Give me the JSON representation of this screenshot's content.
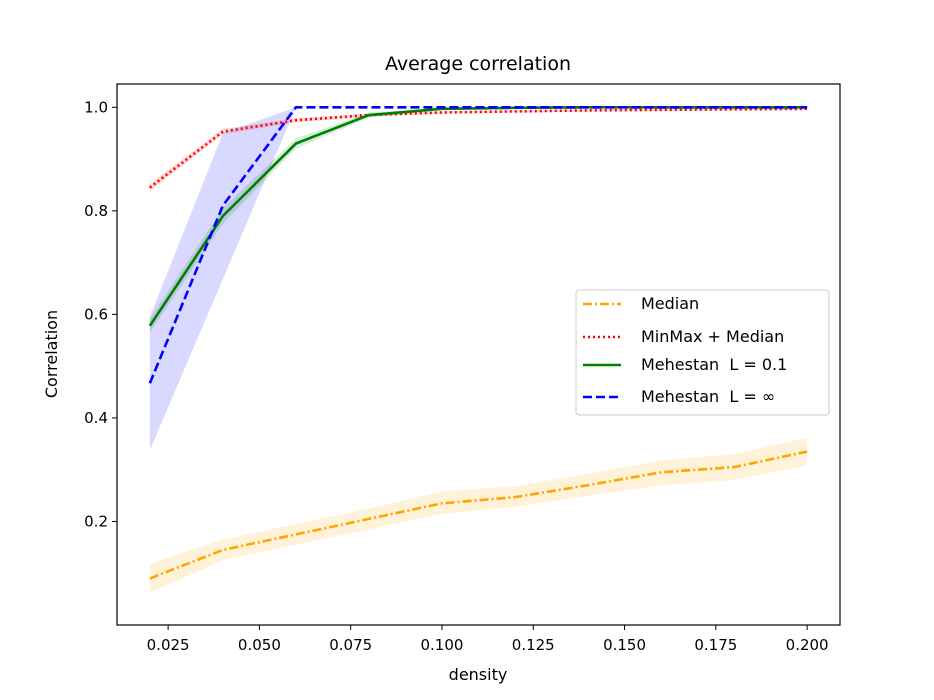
{
  "chart_data": {
    "type": "line",
    "title": "Average correlation",
    "xlabel": "density",
    "ylabel": "Correlation",
    "xlim": [
      0.011,
      0.209
    ],
    "ylim": [
      0.0,
      1.045
    ],
    "xticks": [
      0.025,
      0.05,
      0.075,
      0.1,
      0.125,
      0.15,
      0.175,
      0.2
    ],
    "xtick_labels": [
      "0.025",
      "0.050",
      "0.075",
      "0.100",
      "0.125",
      "0.150",
      "0.175",
      "0.200"
    ],
    "yticks": [
      0.2,
      0.4,
      0.6,
      0.8,
      1.0
    ],
    "ytick_labels": [
      "0.2",
      "0.4",
      "0.6",
      "0.8",
      "1.0"
    ],
    "legend_position": "center-right",
    "series": [
      {
        "name": "Median",
        "color": "#ffa500",
        "style": "dashdot",
        "x": [
          0.02,
          0.04,
          0.06,
          0.08,
          0.1,
          0.12,
          0.14,
          0.16,
          0.18,
          0.2
        ],
        "y": [
          0.09,
          0.145,
          0.175,
          0.205,
          0.235,
          0.247,
          0.27,
          0.295,
          0.305,
          0.335
        ],
        "band_low": [
          0.062,
          0.125,
          0.155,
          0.185,
          0.215,
          0.228,
          0.25,
          0.27,
          0.28,
          0.308
        ],
        "band_high": [
          0.118,
          0.165,
          0.195,
          0.225,
          0.258,
          0.268,
          0.292,
          0.318,
          0.33,
          0.362
        ]
      },
      {
        "name": "MinMax + Median",
        "color": "#ff0000",
        "style": "dotted",
        "x": [
          0.02,
          0.04,
          0.06,
          0.08,
          0.1,
          0.12,
          0.14,
          0.16,
          0.18,
          0.2
        ],
        "y": [
          0.845,
          0.953,
          0.975,
          0.985,
          0.99,
          0.992,
          0.994,
          0.995,
          0.996,
          0.997
        ],
        "band_low": [
          0.838,
          0.948,
          0.971,
          0.982,
          0.988,
          0.99,
          0.992,
          0.993,
          0.994,
          0.995
        ],
        "band_high": [
          0.852,
          0.958,
          0.979,
          0.988,
          0.992,
          0.994,
          0.996,
          0.997,
          0.998,
          0.999
        ]
      },
      {
        "name": "Mehestan  L = 0.1",
        "color": "#008000",
        "style": "solid",
        "x": [
          0.02,
          0.04,
          0.06,
          0.08,
          0.1,
          0.12,
          0.14,
          0.16,
          0.18,
          0.2
        ],
        "y": [
          0.578,
          0.79,
          0.93,
          0.985,
          0.997,
          0.999,
          1.0,
          1.0,
          1.0,
          1.0
        ],
        "band_low": [
          0.565,
          0.775,
          0.92,
          0.98,
          0.995,
          0.998,
          0.999,
          0.999,
          0.999,
          0.999
        ],
        "band_high": [
          0.592,
          0.805,
          0.94,
          0.99,
          0.999,
          1.0,
          1.0,
          1.0,
          1.0,
          1.0
        ]
      },
      {
        "name": "Mehestan  L = ∞",
        "color": "#0000ff",
        "style": "dashed",
        "x": [
          0.02,
          0.04,
          0.06,
          0.08,
          0.1,
          0.12,
          0.14,
          0.16,
          0.18,
          0.2
        ],
        "y": [
          0.467,
          0.81,
          1.0,
          1.0,
          1.0,
          1.0,
          1.0,
          1.0,
          1.0,
          1.0
        ],
        "band_low": [
          0.338,
          0.668,
          1.0,
          1.0,
          1.0,
          1.0,
          1.0,
          1.0,
          1.0,
          1.0
        ],
        "band_high": [
          0.595,
          0.95,
          1.0,
          1.0,
          1.0,
          1.0,
          1.0,
          1.0,
          1.0,
          1.0
        ]
      }
    ]
  }
}
